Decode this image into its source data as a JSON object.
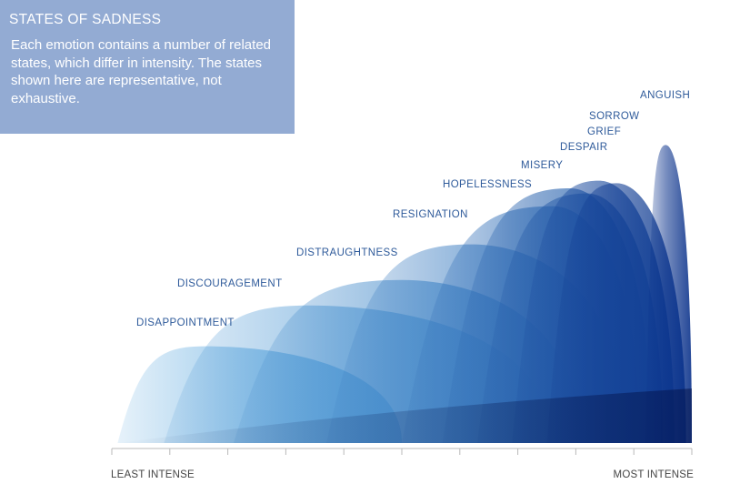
{
  "info": {
    "title": "STATES OF SADNESS",
    "description": "Each emotion contains a number of related states, which differ in intensity. The states shown here are representative, not exhaustive."
  },
  "colors": {
    "info_bg": "#93abd3",
    "label": "#2e5a9a",
    "axis": "#b9b9b9",
    "shade_light": "#cfe3f4",
    "shade_dark": "#03124a"
  },
  "chart_data": {
    "type": "area",
    "title": "STATES OF SADNESS",
    "xlabel": "",
    "ylabel": "",
    "x_axis_labels": {
      "left": "LEAST INTENSE",
      "right": "MOST INTENSE"
    },
    "x_range": [
      0,
      10
    ],
    "tick_count": 11,
    "grid": false,
    "legend": "none",
    "states": [
      {
        "name": "DISAPPOINTMENT",
        "start": 0.1,
        "end": 5.0,
        "peak": 1.6,
        "intensity_peak": 0.38
      },
      {
        "name": "DISCOURAGEMENT",
        "start": 0.9,
        "end": 7.6,
        "peak": 3.4,
        "intensity_peak": 0.54
      },
      {
        "name": "DISTRAUGHTNESS",
        "start": 2.1,
        "end": 8.1,
        "peak": 5.0,
        "intensity_peak": 0.64
      },
      {
        "name": "RESIGNATION",
        "start": 3.7,
        "end": 8.9,
        "peak": 6.2,
        "intensity_peak": 0.78
      },
      {
        "name": "HOPELESSNESS",
        "start": 5.0,
        "end": 9.1,
        "peak": 7.6,
        "intensity_peak": 0.93
      },
      {
        "name": "MISERY",
        "start": 5.7,
        "end": 9.3,
        "peak": 7.9,
        "intensity_peak": 1.0
      },
      {
        "name": "DESPAIR",
        "start": 6.3,
        "end": 9.5,
        "peak": 8.2,
        "intensity_peak": 0.98
      },
      {
        "name": "GRIEF",
        "start": 6.9,
        "end": 9.7,
        "peak": 8.4,
        "intensity_peak": 1.03
      },
      {
        "name": "SORROW",
        "start": 7.5,
        "end": 9.9,
        "peak": 8.7,
        "intensity_peak": 1.02
      },
      {
        "name": "ANGUISH",
        "start": 9.2,
        "end": 10.0,
        "peak": 9.55,
        "intensity_peak": 1.17
      }
    ]
  }
}
